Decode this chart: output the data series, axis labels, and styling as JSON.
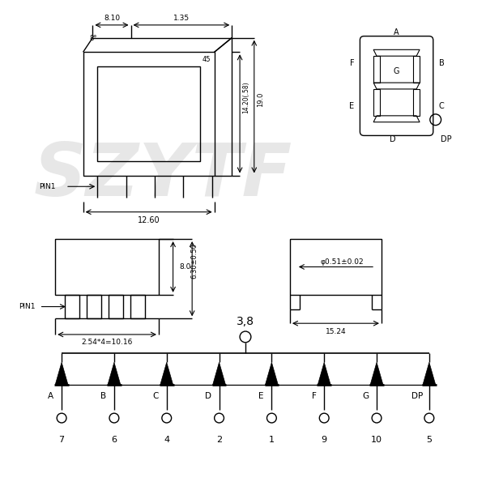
{
  "bg_color": "#ffffff",
  "line_color": "#000000",
  "watermark_text": "SZYTF",
  "watermark_fontsize": 65,
  "watermark_color": "#d0d0d0",
  "tl": {
    "dim_8deg": "8°",
    "dim_810": "8.10",
    "dim_135": "1.35",
    "dim_45": "45",
    "dim_1420": "14.20(.58)",
    "dim_190": "19.0",
    "dim_1260": "12.60",
    "pin1": "PIN1"
  },
  "bl": {
    "label_2544": "2.54*4=10.16",
    "label_63": "6.30±0.50",
    "label_80": "8.0",
    "pin1": "PIN1"
  },
  "br": {
    "label_phi": "φ0.51±0.02",
    "label_1524": "15.24"
  },
  "sch": {
    "segments": [
      "A",
      "B",
      "C",
      "D",
      "E",
      "F",
      "G",
      "DP"
    ],
    "pin_numbers": [
      "7",
      "6",
      "4",
      "2",
      "1",
      "9",
      "10",
      "5"
    ],
    "common_label": "3,8"
  }
}
